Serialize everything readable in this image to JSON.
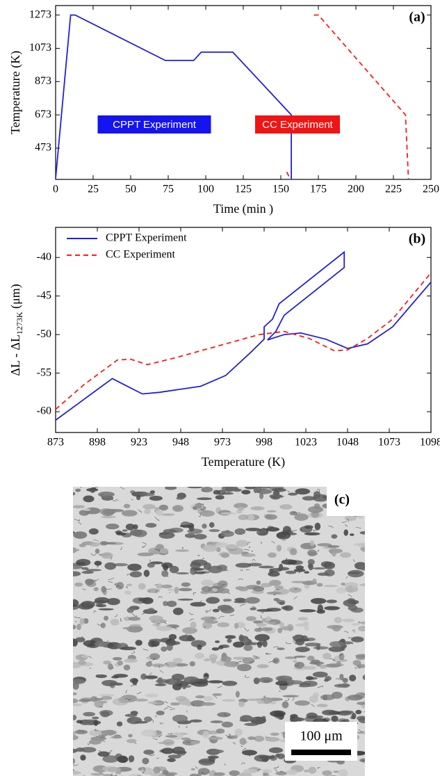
{
  "chart_data": [
    {
      "type": "line",
      "panel_label": "(a)",
      "xlabel": "Time (min )",
      "ylabel": "Temperature (K)",
      "xlim": [
        0,
        250
      ],
      "xticks": [
        0,
        25,
        50,
        75,
        100,
        125,
        150,
        175,
        200,
        225,
        250
      ],
      "ylim": [
        285,
        1330
      ],
      "yticks": [
        473,
        673,
        873,
        1073,
        1273
      ],
      "series": [
        {
          "color": "#1f1fdc",
          "linestyle": "solid",
          "x": [
            0,
            10,
            13,
            73,
            92,
            97,
            118,
            157,
            157
          ],
          "values": [
            290,
            1273,
            1273,
            1000,
            1000,
            1050,
            1050,
            673,
            285
          ]
        },
        {
          "color": "#ff1a1a",
          "linestyle": "dashed",
          "x": [
            154,
            156,
            161,
            172,
            175,
            233,
            235
          ],
          "values": [
            330,
            290,
            null,
            1273,
            1273,
            673,
            290
          ]
        }
      ],
      "annotations": [
        {
          "text": "CPPT Experiment",
          "color": "#1414f0"
        },
        {
          "text": "CC Experiment",
          "color": "#f01414"
        }
      ]
    },
    {
      "type": "line",
      "panel_label": "(b)",
      "xlabel": "Temperature (K)",
      "ylabel": "ΔL - ΔL",
      "ylabel_sub": "1273K",
      "ylabel_suffix": " (μm)",
      "xlim": [
        873,
        1098
      ],
      "xticks": [
        873,
        898,
        923,
        948,
        973,
        998,
        1023,
        1048,
        1073,
        1098
      ],
      "ylim": [
        -62.7,
        -36.1
      ],
      "yticks": [
        -60,
        -55,
        -50,
        -45,
        -40
      ],
      "legend": "upper left",
      "series": [
        {
          "name": "CPPT Experiment",
          "color": "#1f1fdc",
          "linestyle": "solid",
          "x": [
            873,
            890,
            907,
            915,
            925,
            935,
            960,
            975,
            990,
            998,
            998,
            1003,
            1007,
            1046,
            1046,
            1010,
            1005,
            1000,
            1010,
            1020,
            1035,
            1048,
            1060,
            1075,
            1098
          ],
          "values": [
            -61.1,
            -58.4,
            -55.7,
            -56.6,
            -57.7,
            -57.5,
            -56.7,
            -55.3,
            -52.3,
            -50.6,
            -49.0,
            -48.0,
            -46.0,
            -39.3,
            -41.3,
            -47.5,
            -49.6,
            -50.7,
            -50.0,
            -49.8,
            -50.6,
            -51.8,
            -51.2,
            -49.0,
            -43.2
          ]
        },
        {
          "name": "CC Experiment",
          "color": "#ff1a1a",
          "linestyle": "dashed",
          "x": [
            873,
            890,
            910,
            918,
            928,
            945,
            970,
            995,
            1010,
            1025,
            1040,
            1048,
            1060,
            1075,
            1098
          ],
          "values": [
            -59.7,
            -56.5,
            -53.3,
            -53.2,
            -53.9,
            -53.0,
            -51.5,
            -50.0,
            -49.6,
            -50.5,
            -52.1,
            -52.0,
            -50.5,
            -48.0,
            -42.0
          ]
        }
      ]
    }
  ],
  "micrograph": {
    "label": "(c)",
    "scale_bar": "100 μm"
  }
}
